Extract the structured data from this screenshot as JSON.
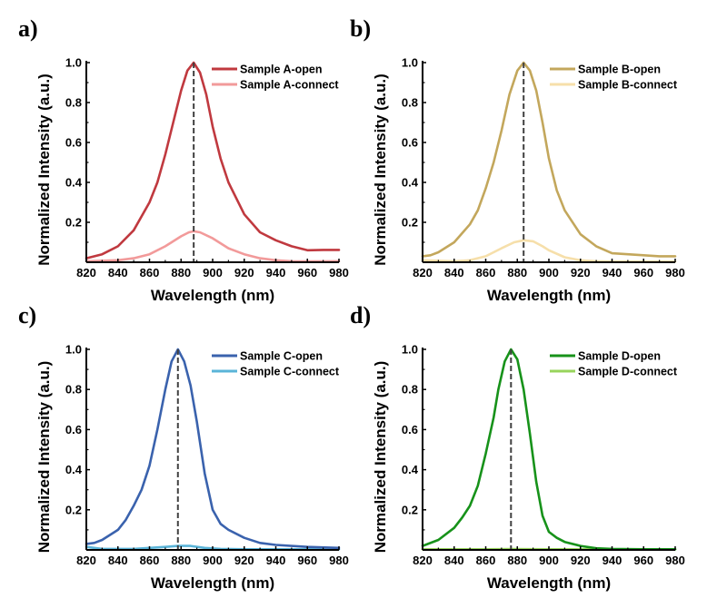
{
  "chart_data": [
    {
      "type": "line",
      "panel_label": "a)",
      "xlabel": "Wavelength (nm)",
      "ylabel": "Normalized Intensity (a.u.)",
      "xlim": [
        820,
        980
      ],
      "ylim": [
        0,
        1.0
      ],
      "xticks": [
        820,
        840,
        860,
        880,
        900,
        920,
        940,
        960,
        980
      ],
      "yticks": [
        0.2,
        0.4,
        0.6,
        0.8,
        1.0
      ],
      "ytick_labels": [
        "0.2",
        "0.4",
        "0.6",
        "0.8",
        "1.0"
      ],
      "grid": false,
      "legend_position": "top-right",
      "peak_marker_x": 888,
      "series": [
        {
          "name": "Sample A-open",
          "color": "#c0393f",
          "x": [
            820,
            830,
            840,
            850,
            860,
            865,
            870,
            875,
            880,
            884,
            888,
            892,
            896,
            900,
            905,
            910,
            920,
            930,
            940,
            950,
            960,
            970,
            980
          ],
          "y": [
            0.02,
            0.04,
            0.08,
            0.16,
            0.3,
            0.4,
            0.54,
            0.7,
            0.86,
            0.96,
            1.0,
            0.95,
            0.84,
            0.68,
            0.52,
            0.4,
            0.24,
            0.15,
            0.11,
            0.08,
            0.06,
            0.062,
            0.062
          ]
        },
        {
          "name": "Sample A-connect",
          "color": "#f29a9a",
          "x": [
            820,
            840,
            850,
            860,
            870,
            880,
            885,
            888,
            892,
            900,
            910,
            920,
            930,
            940,
            950,
            960,
            980
          ],
          "y": [
            0.005,
            0.01,
            0.02,
            0.04,
            0.08,
            0.13,
            0.15,
            0.155,
            0.15,
            0.12,
            0.07,
            0.04,
            0.02,
            0.01,
            0.005,
            0.004,
            0.005
          ]
        }
      ]
    },
    {
      "type": "line",
      "panel_label": "b)",
      "xlabel": "Wavelength (nm)",
      "ylabel": "Normalized Intensity (a.u.)",
      "xlim": [
        820,
        980
      ],
      "ylim": [
        0,
        1.0
      ],
      "xticks": [
        820,
        840,
        860,
        880,
        900,
        920,
        940,
        960,
        980
      ],
      "yticks": [
        0.2,
        0.4,
        0.6,
        0.8,
        1.0
      ],
      "ytick_labels": [
        "0.2",
        "0.4",
        "0.6",
        "0.8",
        "1.0"
      ],
      "grid": false,
      "legend_position": "top-right",
      "peak_marker_x": 884,
      "series": [
        {
          "name": "Sample B-open",
          "color": "#c3a75c",
          "x": [
            820,
            825,
            830,
            840,
            850,
            855,
            860,
            865,
            870,
            875,
            880,
            884,
            888,
            892,
            896,
            900,
            905,
            910,
            920,
            930,
            940,
            950,
            960,
            970,
            980
          ],
          "y": [
            0.03,
            0.035,
            0.05,
            0.1,
            0.19,
            0.26,
            0.37,
            0.5,
            0.66,
            0.84,
            0.96,
            1.0,
            0.96,
            0.86,
            0.7,
            0.52,
            0.36,
            0.26,
            0.14,
            0.08,
            0.045,
            0.04,
            0.035,
            0.03,
            0.03
          ]
        },
        {
          "name": "Sample B-connect",
          "color": "#f6dfaa",
          "x": [
            820,
            840,
            850,
            860,
            870,
            878,
            884,
            890,
            896,
            900,
            910,
            920,
            930,
            940,
            960,
            980
          ],
          "y": [
            0.01,
            0.005,
            0.01,
            0.03,
            0.07,
            0.1,
            0.11,
            0.105,
            0.08,
            0.06,
            0.025,
            0.01,
            0.005,
            0.003,
            0.003,
            0.003
          ]
        }
      ]
    },
    {
      "type": "line",
      "panel_label": "c)",
      "xlabel": "Wavelength (nm)",
      "ylabel": "Normalized Intensity (a.u.)",
      "xlim": [
        820,
        980
      ],
      "ylim": [
        0,
        1.0
      ],
      "xticks": [
        820,
        840,
        860,
        880,
        900,
        920,
        940,
        960,
        980
      ],
      "yticks": [
        0.2,
        0.4,
        0.6,
        0.8,
        1.0
      ],
      "ytick_labels": [
        "0.2",
        "0.4",
        "0.6",
        "0.8",
        "1.0"
      ],
      "grid": false,
      "legend_position": "top-right",
      "peak_marker_x": 878,
      "series": [
        {
          "name": "Sample C-open",
          "color": "#3a62ad",
          "x": [
            820,
            825,
            830,
            840,
            845,
            850,
            855,
            860,
            865,
            870,
            874,
            878,
            882,
            886,
            890,
            895,
            900,
            905,
            910,
            920,
            930,
            940,
            960,
            980
          ],
          "y": [
            0.03,
            0.035,
            0.05,
            0.1,
            0.15,
            0.22,
            0.3,
            0.42,
            0.6,
            0.8,
            0.94,
            1.0,
            0.94,
            0.82,
            0.64,
            0.38,
            0.2,
            0.13,
            0.1,
            0.06,
            0.035,
            0.025,
            0.015,
            0.01
          ]
        },
        {
          "name": "Sample C-connect",
          "color": "#5ab4d8",
          "x": [
            820,
            830,
            850,
            860,
            870,
            878,
            886,
            895,
            905,
            920,
            940,
            960,
            980
          ],
          "y": [
            0.015,
            0.005,
            0.005,
            0.01,
            0.015,
            0.02,
            0.02,
            0.01,
            0.005,
            0.003,
            0.003,
            0.003,
            0.003
          ]
        }
      ]
    },
    {
      "type": "line",
      "panel_label": "d)",
      "xlabel": "Wavelength (nm)",
      "ylabel": "Normalized Intensity (a.u.)",
      "xlim": [
        820,
        980
      ],
      "ylim": [
        0,
        1.0
      ],
      "xticks": [
        820,
        840,
        860,
        880,
        900,
        920,
        940,
        960,
        980
      ],
      "yticks": [
        0.2,
        0.4,
        0.6,
        0.8,
        1.0
      ],
      "ytick_labels": [
        "0.2",
        "0.4",
        "0.6",
        "0.8",
        "1.0"
      ],
      "grid": false,
      "legend_position": "top-right",
      "peak_marker_x": 876,
      "series": [
        {
          "name": "Sample D-open",
          "color": "#17921a",
          "x": [
            820,
            830,
            840,
            845,
            850,
            855,
            860,
            865,
            868,
            872,
            876,
            880,
            884,
            888,
            892,
            896,
            900,
            905,
            910,
            920,
            930,
            940,
            960,
            980
          ],
          "y": [
            0.02,
            0.05,
            0.11,
            0.16,
            0.22,
            0.32,
            0.48,
            0.66,
            0.8,
            0.94,
            1.0,
            0.95,
            0.8,
            0.58,
            0.34,
            0.17,
            0.09,
            0.06,
            0.04,
            0.02,
            0.008,
            0.005,
            0.003,
            0.003
          ]
        },
        {
          "name": "Sample D-connect",
          "color": "#98d45c",
          "x": [
            820,
            860,
            876,
            900,
            940,
            980
          ],
          "y": [
            0.003,
            0.003,
            0.004,
            0.003,
            0.003,
            0.003
          ]
        }
      ]
    }
  ]
}
